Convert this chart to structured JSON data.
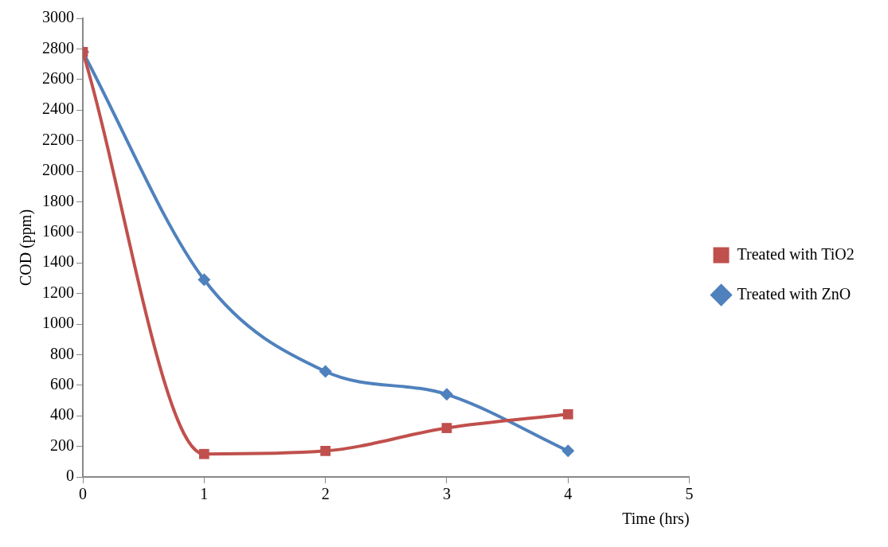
{
  "chart_data": {
    "type": "line",
    "xlabel": "Time (hrs)",
    "ylabel": "COD (ppm)",
    "x": [
      0,
      1,
      2,
      3,
      4
    ],
    "series": [
      {
        "name": "Treated with TiO2",
        "color": "#c0504d",
        "marker": "square",
        "values": [
          2780,
          150,
          170,
          320,
          410
        ]
      },
      {
        "name": "Treated with ZnO",
        "color": "#4f81bd",
        "marker": "diamond",
        "values": [
          2780,
          1290,
          690,
          540,
          170
        ]
      }
    ],
    "xlim": [
      0,
      5
    ],
    "xticks": [
      0,
      1,
      2,
      3,
      4,
      5
    ],
    "ylim": [
      0,
      3000
    ],
    "yticks": [
      0,
      200,
      400,
      600,
      800,
      1000,
      1200,
      1400,
      1600,
      1800,
      2000,
      2200,
      2400,
      2600,
      2800,
      3000
    ],
    "grid": false,
    "legend": "right",
    "line_style": "solid"
  }
}
